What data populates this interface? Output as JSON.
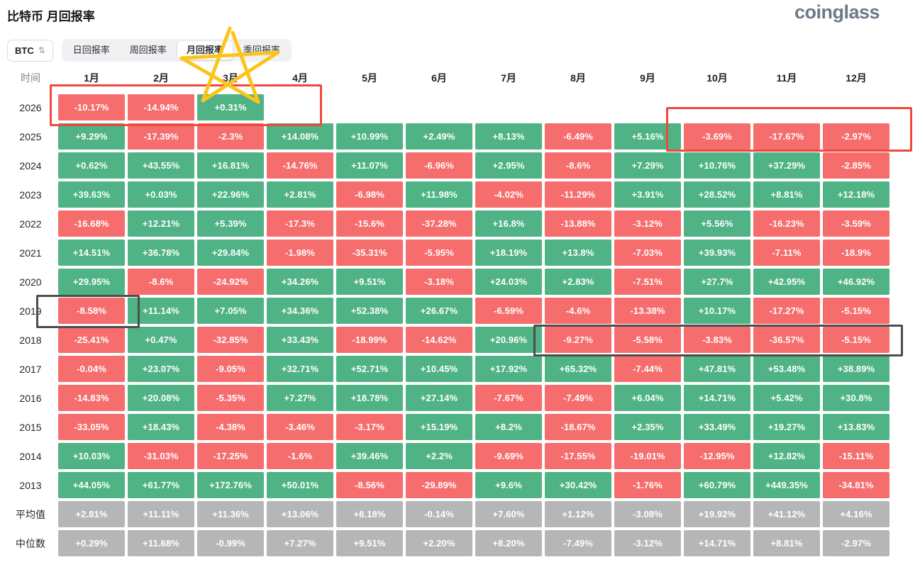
{
  "header": {
    "title": "比特币 月回报率",
    "logo": "coinglass"
  },
  "controls": {
    "symbol": "BTC",
    "sort_icon": "⇅",
    "tabs": [
      {
        "name": "tab-daily-returns",
        "label": "日回报率",
        "active": false
      },
      {
        "name": "tab-weekly-returns",
        "label": "周回报率",
        "active": false
      },
      {
        "name": "tab-monthly-returns",
        "label": "月回报率",
        "active": true
      },
      {
        "name": "tab-quarterly-returns",
        "label": "季回报率",
        "active": false
      }
    ]
  },
  "palette": {
    "positive": "#4fb385",
    "negative": "#f66d6d",
    "summary": "#b5b6b7",
    "annotation_red": "#f0483e",
    "annotation_dark": "#4d4d4d",
    "annotation_yellow": "#fcc419"
  },
  "chart_data": {
    "type": "heatmap",
    "title": "比特币 月回报率",
    "time_label": "时间",
    "months": [
      "1月",
      "2月",
      "3月",
      "4月",
      "5月",
      "6月",
      "7月",
      "8月",
      "9月",
      "10月",
      "11月",
      "12月"
    ],
    "rows": [
      {
        "label": "2026",
        "values": [
          "-10.17%",
          "-14.94%",
          "+0.31%"
        ]
      },
      {
        "label": "2025",
        "values": [
          "+9.29%",
          "-17.39%",
          "-2.3%",
          "+14.08%",
          "+10.99%",
          "+2.49%",
          "+8.13%",
          "-6.49%",
          "+5.16%",
          "-3.69%",
          "-17.67%",
          "-2.97%"
        ]
      },
      {
        "label": "2024",
        "values": [
          "+0.62%",
          "+43.55%",
          "+16.81%",
          "-14.76%",
          "+11.07%",
          "-6.96%",
          "+2.95%",
          "-8.6%",
          "+7.29%",
          "+10.76%",
          "+37.29%",
          "-2.85%"
        ]
      },
      {
        "label": "2023",
        "values": [
          "+39.63%",
          "+0.03%",
          "+22.96%",
          "+2.81%",
          "-6.98%",
          "+11.98%",
          "-4.02%",
          "-11.29%",
          "+3.91%",
          "+28.52%",
          "+8.81%",
          "+12.18%"
        ]
      },
      {
        "label": "2022",
        "values": [
          "-16.68%",
          "+12.21%",
          "+5.39%",
          "-17.3%",
          "-15.6%",
          "-37.28%",
          "+16.8%",
          "-13.88%",
          "-3.12%",
          "+5.56%",
          "-16.23%",
          "-3.59%"
        ]
      },
      {
        "label": "2021",
        "values": [
          "+14.51%",
          "+36.78%",
          "+29.84%",
          "-1.98%",
          "-35.31%",
          "-5.95%",
          "+18.19%",
          "+13.8%",
          "-7.03%",
          "+39.93%",
          "-7.11%",
          "-18.9%"
        ]
      },
      {
        "label": "2020",
        "values": [
          "+29.95%",
          "-8.6%",
          "-24.92%",
          "+34.26%",
          "+9.51%",
          "-3.18%",
          "+24.03%",
          "+2.83%",
          "-7.51%",
          "+27.7%",
          "+42.95%",
          "+46.92%"
        ]
      },
      {
        "label": "2019",
        "values": [
          "-8.58%",
          "+11.14%",
          "+7.05%",
          "+34.36%",
          "+52.38%",
          "+26.67%",
          "-6.59%",
          "-4.6%",
          "-13.38%",
          "+10.17%",
          "-17.27%",
          "-5.15%"
        ]
      },
      {
        "label": "2018",
        "values": [
          "-25.41%",
          "+0.47%",
          "-32.85%",
          "+33.43%",
          "-18.99%",
          "-14.62%",
          "+20.96%",
          "-9.27%",
          "-5.58%",
          "-3.83%",
          "-36.57%",
          "-5.15%"
        ]
      },
      {
        "label": "2017",
        "values": [
          "-0.04%",
          "+23.07%",
          "-9.05%",
          "+32.71%",
          "+52.71%",
          "+10.45%",
          "+17.92%",
          "+65.32%",
          "-7.44%",
          "+47.81%",
          "+53.48%",
          "+38.89%"
        ]
      },
      {
        "label": "2016",
        "values": [
          "-14.83%",
          "+20.08%",
          "-5.35%",
          "+7.27%",
          "+18.78%",
          "+27.14%",
          "-7.67%",
          "-7.49%",
          "+6.04%",
          "+14.71%",
          "+5.42%",
          "+30.8%"
        ]
      },
      {
        "label": "2015",
        "values": [
          "-33.05%",
          "+18.43%",
          "-4.38%",
          "-3.46%",
          "-3.17%",
          "+15.19%",
          "+8.2%",
          "-18.67%",
          "+2.35%",
          "+33.49%",
          "+19.27%",
          "+13.83%"
        ]
      },
      {
        "label": "2014",
        "values": [
          "+10.03%",
          "-31.03%",
          "-17.25%",
          "-1.6%",
          "+39.46%",
          "+2.2%",
          "-9.69%",
          "-17.55%",
          "-19.01%",
          "-12.95%",
          "+12.82%",
          "-15.11%"
        ]
      },
      {
        "label": "2013",
        "values": [
          "+44.05%",
          "+61.77%",
          "+172.76%",
          "+50.01%",
          "-8.56%",
          "-29.89%",
          "+9.6%",
          "+30.42%",
          "-1.76%",
          "+60.79%",
          "+449.35%",
          "-34.81%"
        ]
      },
      {
        "label": "平均值",
        "summary": true,
        "values": [
          "+2.81%",
          "+11.11%",
          "+11.36%",
          "+13.06%",
          "+8.18%",
          "-0.14%",
          "+7.60%",
          "+1.12%",
          "-3.08%",
          "+19.92%",
          "+41.12%",
          "+4.16%"
        ]
      },
      {
        "label": "中位数",
        "summary": true,
        "values": [
          "+0.29%",
          "+11.68%",
          "-0.99%",
          "+7.27%",
          "+9.51%",
          "+2.20%",
          "+8.20%",
          "-7.49%",
          "-3.12%",
          "+14.71%",
          "+8.81%",
          "-2.97%"
        ]
      }
    ]
  }
}
